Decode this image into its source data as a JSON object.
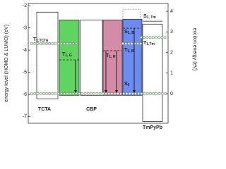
{
  "left_axis": {
    "title": "energy level (HOMO & LUMO) (eV)",
    "lim": [
      -1.9,
      -7.3
    ],
    "ticks": [
      -2,
      -3,
      -4,
      -5,
      -6,
      -7
    ]
  },
  "right_axis": {
    "title": "exciton energy (eV)",
    "lim": [
      4.38,
      -1.44
    ],
    "ticks": [
      0,
      1,
      2,
      3,
      4
    ]
  },
  "layers": [
    {
      "name": "TCTA",
      "lumo": -2.29,
      "homo": -6.2,
      "color": "#ffffff"
    },
    {
      "lumo": -2.64,
      "homo": -6.04,
      "color": "#44cc44"
    },
    {
      "name": "CBP",
      "lumo": -2.64,
      "homo": -6.04,
      "color": "#ffffff"
    },
    {
      "lumo": -2.64,
      "homo": -6.04,
      "color": "#cc7799"
    },
    {
      "lumo": -2.61,
      "homo": -6.04,
      "color": "#5577ee",
      "dashed_top": -2.16
    },
    {
      "name": "TmPyPb",
      "lumo": -2.83,
      "homo": -7.22,
      "color": "#ffffff"
    }
  ],
  "states": [
    {
      "main": "T",
      "sub": "1,TCTA",
      "energy": 2.43,
      "style": "circles"
    },
    {
      "main": "T",
      "sub": "1, G",
      "energy": 1.64,
      "style": "dashed"
    },
    {
      "main": "T",
      "sub": "1, R",
      "energy": 2.09,
      "style": "dashed"
    },
    {
      "main": "S",
      "sub": "1, B",
      "energy": 3.18,
      "style": "dashed"
    },
    {
      "main": "T",
      "sub": "1, B",
      "energy": 2.43,
      "style": "circles"
    },
    {
      "main": "S",
      "sub": "1, Tm",
      "energy": 3.52,
      "style": "solid"
    },
    {
      "main": "T",
      "sub": "1,Tm",
      "energy": 2.73,
      "style": "circles"
    },
    {
      "main": "S",
      "sub": "0",
      "energy": 0,
      "style": "circles"
    }
  ]
}
